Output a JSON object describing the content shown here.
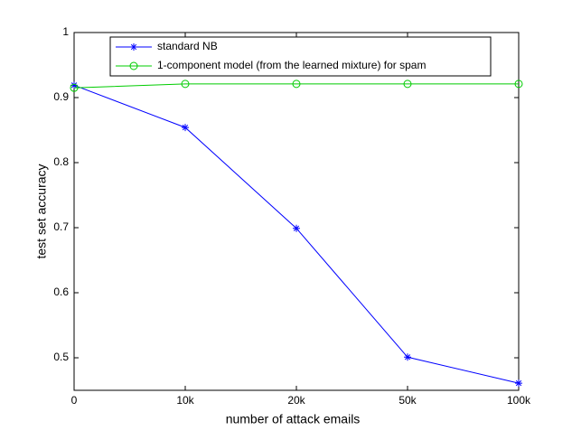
{
  "chart_data": {
    "type": "line",
    "xlabel": "number of attack emails",
    "ylabel": "test set accuracy",
    "categories": [
      "0",
      "10k",
      "20k",
      "50k",
      "100k"
    ],
    "series": [
      {
        "name": "standard NB",
        "color": "#0000ff",
        "marker": "star",
        "values": [
          0.919,
          0.854,
          0.699,
          0.501,
          0.461
        ]
      },
      {
        "name": "1-component model (from the learned mixture) for spam",
        "color": "#00cc00",
        "marker": "circle",
        "values": [
          0.915,
          0.921,
          0.921,
          0.921,
          0.921
        ]
      }
    ],
    "ylim": [
      0.45,
      1
    ],
    "yticks": [
      0.5,
      0.6,
      0.7,
      0.8,
      0.9,
      1
    ],
    "legend": "top"
  }
}
